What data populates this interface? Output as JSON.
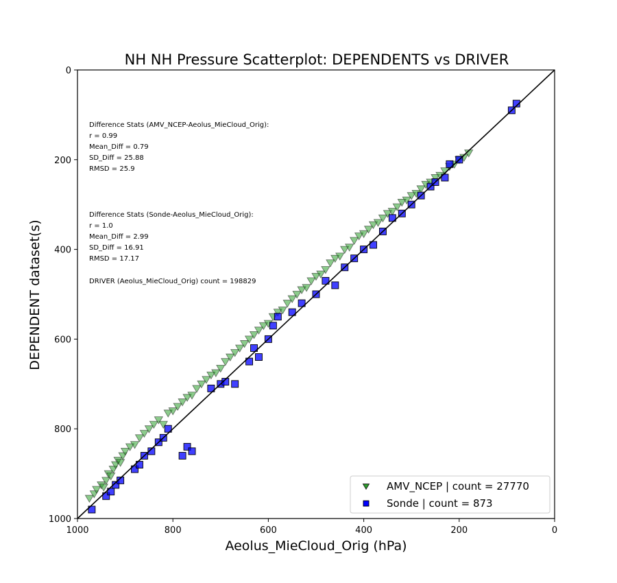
{
  "chart_data": {
    "type": "scatter",
    "title": "NH NH Pressure Scatterplot: DEPENDENTS vs DRIVER",
    "xlabel": "Aeolus_MieCloud_Orig (hPa)",
    "ylabel": "DEPENDENT dataset(s)",
    "xlim": [
      1000,
      0
    ],
    "ylim": [
      1000,
      0
    ],
    "x_ticks": [
      1000,
      800,
      600,
      400,
      200,
      0
    ],
    "y_ticks": [
      0,
      200,
      400,
      600,
      800,
      1000
    ],
    "x_tick_labels": [
      "1000",
      "800",
      "600",
      "400",
      "200",
      "0"
    ],
    "y_tick_labels": [
      "0",
      "200",
      "400",
      "600",
      "800",
      "1000"
    ],
    "grid": false,
    "reference_line": "1:1",
    "legend_position": "lower-right",
    "series": [
      {
        "name": "AMV_NCEP | count = 27770",
        "marker": "triangle-down",
        "color": "#2ca02c",
        "edge_color": "#1a1a1a",
        "count": 27770,
        "x": [
          975,
          965,
          960,
          950,
          945,
          940,
          935,
          930,
          925,
          920,
          915,
          910,
          905,
          900,
          890,
          880,
          870,
          860,
          850,
          840,
          830,
          820,
          810,
          800,
          790,
          780,
          770,
          760,
          750,
          740,
          730,
          720,
          710,
          700,
          690,
          680,
          670,
          660,
          650,
          640,
          630,
          620,
          610,
          600,
          590,
          580,
          570,
          560,
          550,
          540,
          530,
          520,
          510,
          500,
          490,
          480,
          470,
          460,
          450,
          440,
          430,
          420,
          410,
          400,
          390,
          380,
          370,
          360,
          350,
          340,
          330,
          320,
          310,
          300,
          290,
          280,
          270,
          260,
          250,
          240,
          230,
          220,
          210,
          200,
          190,
          180
        ],
        "y": [
          955,
          945,
          935,
          925,
          930,
          915,
          900,
          905,
          890,
          880,
          870,
          875,
          860,
          850,
          840,
          835,
          820,
          810,
          800,
          790,
          780,
          790,
          765,
          760,
          750,
          740,
          730,
          725,
          710,
          700,
          690,
          680,
          675,
          665,
          650,
          640,
          630,
          620,
          610,
          600,
          590,
          580,
          570,
          565,
          550,
          540,
          535,
          520,
          510,
          500,
          490,
          485,
          470,
          460,
          455,
          445,
          430,
          420,
          415,
          400,
          395,
          380,
          370,
          365,
          355,
          345,
          340,
          330,
          320,
          315,
          305,
          295,
          290,
          280,
          275,
          265,
          255,
          250,
          240,
          235,
          225,
          215,
          210,
          200,
          195,
          185
        ]
      },
      {
        "name": "Sonde | count = 873",
        "marker": "square",
        "color": "#0000ff",
        "edge_color": "#000000",
        "count": 873,
        "x": [
          970,
          940,
          930,
          920,
          910,
          880,
          870,
          860,
          845,
          830,
          820,
          810,
          780,
          770,
          760,
          720,
          700,
          690,
          670,
          640,
          630,
          620,
          600,
          590,
          580,
          550,
          530,
          500,
          480,
          460,
          440,
          420,
          400,
          380,
          360,
          340,
          320,
          300,
          280,
          260,
          250,
          230,
          220,
          200,
          90,
          80
        ],
        "y": [
          980,
          950,
          940,
          925,
          915,
          890,
          880,
          860,
          850,
          830,
          820,
          800,
          860,
          840,
          850,
          710,
          700,
          695,
          700,
          650,
          620,
          640,
          600,
          570,
          550,
          540,
          520,
          500,
          470,
          480,
          440,
          420,
          400,
          390,
          360,
          330,
          320,
          300,
          280,
          260,
          250,
          240,
          210,
          200,
          90,
          75
        ]
      }
    ],
    "annotations": [
      {
        "lines": [
          "Difference Stats (AMV_NCEP-Aeolus_MieCloud_Orig):",
          "r = 0.99",
          "Mean_Diff = 0.79",
          "SD_Diff = 25.88",
          "RMSD = 25.9"
        ]
      },
      {
        "lines": [
          "Difference Stats (Sonde-Aeolus_MieCloud_Orig):",
          "r = 1.0",
          "Mean_Diff = 2.99",
          "SD_Diff = 16.91",
          "RMSD = 17.17"
        ]
      },
      {
        "lines": [
          "DRIVER (Aeolus_MieCloud_Orig) count = 198829"
        ]
      }
    ]
  }
}
